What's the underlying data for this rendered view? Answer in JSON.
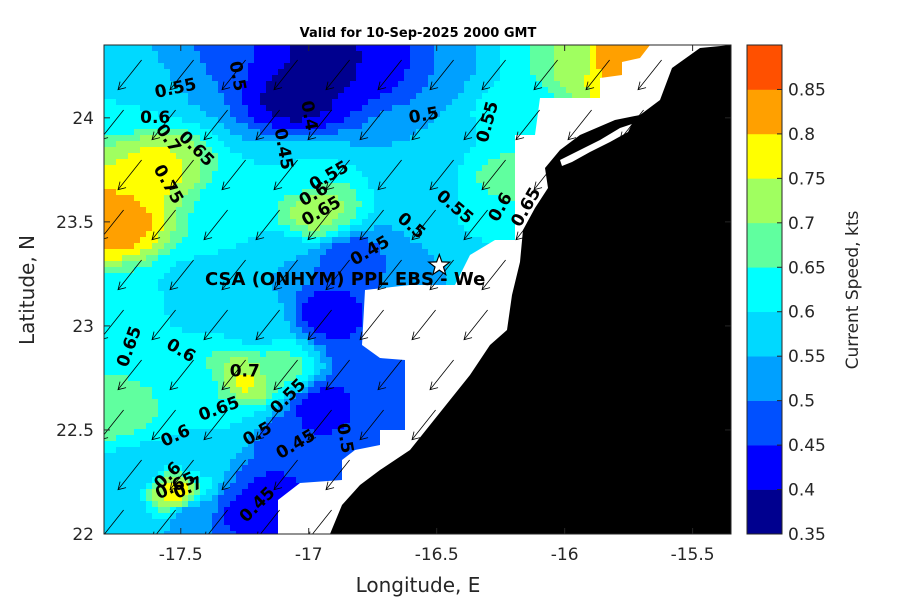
{
  "chart_data": {
    "type": "heatmap",
    "title": "Valid for 10-Sep-2025 2000 GMT",
    "xlabel": "Longitude, E",
    "ylabel": "Latitude, N",
    "xlim": [
      -17.8,
      -15.35
    ],
    "ylim": [
      22.0,
      24.35
    ],
    "xticks": [
      -17.5,
      -17,
      -16.5,
      -16,
      -15.5
    ],
    "xtick_labels": [
      "-17.5",
      "-17",
      "-16.5",
      "-16",
      "-15.5"
    ],
    "yticks": [
      22,
      22.5,
      23,
      23.5,
      24
    ],
    "ytick_labels": [
      "22",
      "22.5",
      "23",
      "23.5",
      "24"
    ],
    "colorbar": {
      "label": "Current Speed, kts",
      "levels": [
        0.35,
        0.4,
        0.45,
        0.5,
        0.55,
        0.6,
        0.65,
        0.7,
        0.75,
        0.8,
        0.85
      ],
      "tick_labels": [
        "0.35",
        "0.4",
        "0.45",
        "0.5",
        "0.55",
        "0.6",
        "0.65",
        "0.7",
        "0.75",
        "0.8",
        "0.85"
      ],
      "colors": [
        "#00008f",
        "#0000ff",
        "#0050ff",
        "#00a0ff",
        "#00d9ff",
        "#00ffff",
        "#60ff9f",
        "#a0ff60",
        "#ffff00",
        "#ffa000",
        "#ff5000"
      ]
    },
    "land_color": "#000000",
    "nodata_color": "#ffffff",
    "grid": false,
    "site": {
      "label": "CSA (ONHYM) PPL EBS - We",
      "lon": -16.49,
      "lat": 23.29,
      "marker": "star"
    },
    "field_centers": [
      {
        "lon": -17.76,
        "lat": 23.5,
        "value": 0.83
      },
      {
        "lon": -17.6,
        "lat": 23.75,
        "value": 0.76
      },
      {
        "lon": -17.72,
        "lat": 24.1,
        "value": 0.6
      },
      {
        "lon": -17.5,
        "lat": 24.22,
        "value": 0.55
      },
      {
        "lon": -17.32,
        "lat": 24.3,
        "value": 0.45
      },
      {
        "lon": -17.3,
        "lat": 23.55,
        "value": 0.62
      },
      {
        "lon": -17.05,
        "lat": 24.1,
        "value": 0.38
      },
      {
        "lon": -16.9,
        "lat": 24.3,
        "value": 0.38
      },
      {
        "lon": -16.7,
        "lat": 24.3,
        "value": 0.42
      },
      {
        "lon": -16.5,
        "lat": 24.3,
        "value": 0.5
      },
      {
        "lon": -16.35,
        "lat": 24.32,
        "value": 0.55
      },
      {
        "lon": -16.15,
        "lat": 24.32,
        "value": 0.65
      },
      {
        "lon": -15.95,
        "lat": 24.3,
        "value": 0.73
      },
      {
        "lon": -15.8,
        "lat": 24.3,
        "value": 0.85
      },
      {
        "lon": -16.2,
        "lat": 24.05,
        "value": 0.62
      },
      {
        "lon": -16.25,
        "lat": 23.7,
        "value": 0.66
      },
      {
        "lon": -16.35,
        "lat": 23.55,
        "value": 0.63
      },
      {
        "lon": -16.55,
        "lat": 23.85,
        "value": 0.55
      },
      {
        "lon": -16.5,
        "lat": 23.55,
        "value": 0.55
      },
      {
        "lon": -16.97,
        "lat": 23.55,
        "value": 0.72
      },
      {
        "lon": -17.05,
        "lat": 23.75,
        "value": 0.6
      },
      {
        "lon": -16.85,
        "lat": 23.3,
        "value": 0.46
      },
      {
        "lon": -16.92,
        "lat": 23.06,
        "value": 0.42
      },
      {
        "lon": -16.78,
        "lat": 22.9,
        "value": 0.45
      },
      {
        "lon": -16.6,
        "lat": 22.82,
        "value": 0.47
      },
      {
        "lon": -16.7,
        "lat": 22.6,
        "value": 0.48
      },
      {
        "lon": -16.95,
        "lat": 22.6,
        "value": 0.42
      },
      {
        "lon": -17.1,
        "lat": 22.45,
        "value": 0.46
      },
      {
        "lon": -17.15,
        "lat": 22.2,
        "value": 0.44
      },
      {
        "lon": -17.25,
        "lat": 22.1,
        "value": 0.43
      },
      {
        "lon": -17.0,
        "lat": 22.2,
        "value": 0.45
      },
      {
        "lon": -17.45,
        "lat": 22.08,
        "value": 0.5
      },
      {
        "lon": -17.52,
        "lat": 22.2,
        "value": 0.78
      },
      {
        "lon": -17.45,
        "lat": 22.35,
        "value": 0.58
      },
      {
        "lon": -17.65,
        "lat": 22.3,
        "value": 0.57
      },
      {
        "lon": -17.72,
        "lat": 22.08,
        "value": 0.56
      },
      {
        "lon": -17.25,
        "lat": 22.73,
        "value": 0.76
      },
      {
        "lon": -17.4,
        "lat": 22.7,
        "value": 0.64
      },
      {
        "lon": -17.1,
        "lat": 22.8,
        "value": 0.66
      },
      {
        "lon": -17.3,
        "lat": 22.55,
        "value": 0.6
      },
      {
        "lon": -17.6,
        "lat": 22.9,
        "value": 0.6
      },
      {
        "lon": -17.75,
        "lat": 22.6,
        "value": 0.68
      },
      {
        "lon": -17.7,
        "lat": 23.1,
        "value": 0.62
      },
      {
        "lon": -17.45,
        "lat": 23.15,
        "value": 0.58
      },
      {
        "lon": -17.2,
        "lat": 23.0,
        "value": 0.58
      },
      {
        "lon": -16.6,
        "lat": 23.15,
        "value": 0.52
      },
      {
        "lon": -16.35,
        "lat": 23.1,
        "value": 0.6
      },
      {
        "lon": -16.5,
        "lat": 23.35,
        "value": 0.55
      },
      {
        "lon": -17.1,
        "lat": 23.3,
        "value": 0.55
      },
      {
        "lon": -16.5,
        "lat": 22.6,
        "value": 0.5
      },
      {
        "lon": -16.8,
        "lat": 22.35,
        "value": 0.5
      }
    ],
    "contour_labels": [
      {
        "text": "0.55",
        "lon": -17.52,
        "lat": 24.14,
        "angle": -12
      },
      {
        "text": "0.6",
        "lon": -17.6,
        "lat": 24.0,
        "angle": 0
      },
      {
        "text": "0.7",
        "lon": -17.55,
        "lat": 23.9,
        "angle": 55
      },
      {
        "text": "0.65",
        "lon": -17.44,
        "lat": 23.85,
        "angle": 45
      },
      {
        "text": "0.75",
        "lon": -17.55,
        "lat": 23.68,
        "angle": 60
      },
      {
        "text": "0.5",
        "lon": -17.28,
        "lat": 24.2,
        "angle": 80
      },
      {
        "text": "0.4",
        "lon": -17.0,
        "lat": 24.01,
        "angle": 80
      },
      {
        "text": "0.45",
        "lon": -17.1,
        "lat": 23.85,
        "angle": 80
      },
      {
        "text": "0.5",
        "lon": -16.55,
        "lat": 24.01,
        "angle": -10
      },
      {
        "text": "0.55",
        "lon": -16.3,
        "lat": 23.98,
        "angle": -75
      },
      {
        "text": "0.55",
        "lon": -16.92,
        "lat": 23.72,
        "angle": -30
      },
      {
        "text": "0.6",
        "lon": -16.98,
        "lat": 23.63,
        "angle": -30
      },
      {
        "text": "0.65",
        "lon": -16.95,
        "lat": 23.55,
        "angle": -30
      },
      {
        "text": "0.55",
        "lon": -16.43,
        "lat": 23.57,
        "angle": 40
      },
      {
        "text": "0.6",
        "lon": -16.25,
        "lat": 23.57,
        "angle": -60
      },
      {
        "text": "0.65",
        "lon": -16.15,
        "lat": 23.57,
        "angle": -60
      },
      {
        "text": "0.5",
        "lon": -16.6,
        "lat": 23.48,
        "angle": 40
      },
      {
        "text": "0.45",
        "lon": -16.76,
        "lat": 23.36,
        "angle": -30
      },
      {
        "text": "0.65",
        "lon": -17.7,
        "lat": 22.9,
        "angle": -70
      },
      {
        "text": "0.6",
        "lon": -17.5,
        "lat": 22.88,
        "angle": 30
      },
      {
        "text": "0.7",
        "lon": -17.25,
        "lat": 22.78,
        "angle": 0
      },
      {
        "text": "0.65",
        "lon": -17.35,
        "lat": 22.6,
        "angle": -20
      },
      {
        "text": "0.55",
        "lon": -17.08,
        "lat": 22.66,
        "angle": -45
      },
      {
        "text": "0.5",
        "lon": -17.2,
        "lat": 22.48,
        "angle": -30
      },
      {
        "text": "0.45",
        "lon": -17.05,
        "lat": 22.43,
        "angle": -30
      },
      {
        "text": "0.5",
        "lon": -16.86,
        "lat": 22.46,
        "angle": 80
      },
      {
        "text": "0.6",
        "lon": -17.52,
        "lat": 22.47,
        "angle": -25
      },
      {
        "text": "0.6",
        "lon": -17.55,
        "lat": 22.28,
        "angle": -45
      },
      {
        "text": "0.65",
        "lon": -17.52,
        "lat": 22.23,
        "angle": -25
      },
      {
        "text": "0.7",
        "lon": -17.47,
        "lat": 22.22,
        "angle": -25
      },
      {
        "text": "0.45",
        "lon": -17.2,
        "lat": 22.14,
        "angle": -45
      }
    ]
  }
}
